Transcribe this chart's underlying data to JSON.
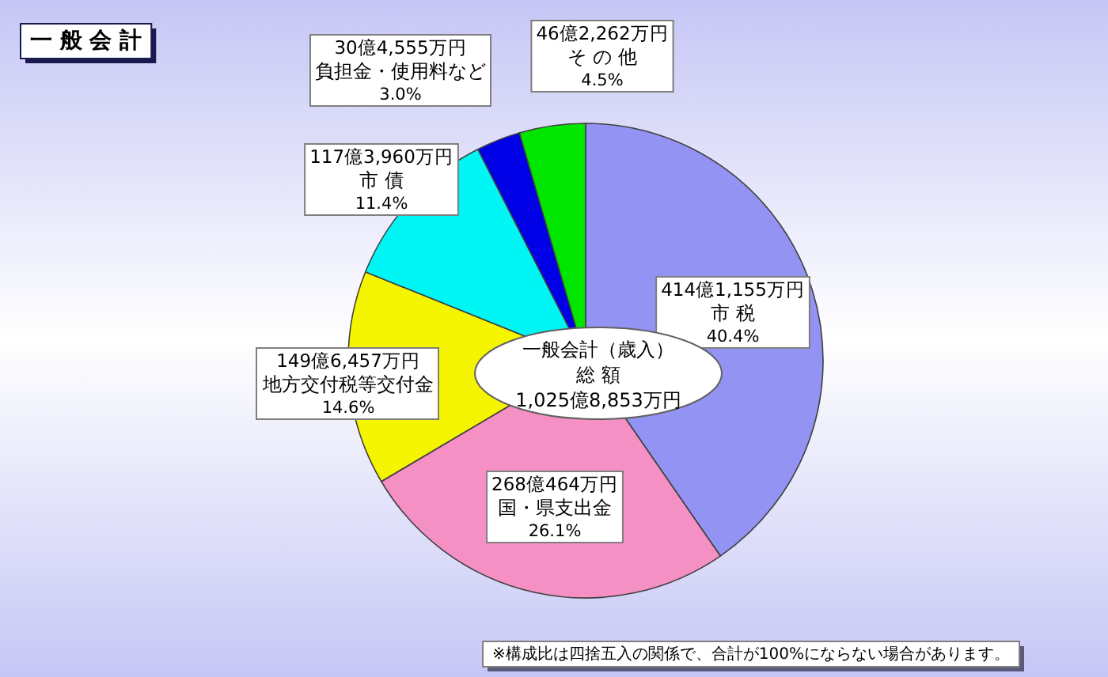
{
  "chart_data": {
    "type": "pie",
    "title": "一 般 会 計",
    "categories": [
      "市 税",
      "国・県支出金",
      "地方交付税等交付金",
      "市 債",
      "負担金・使用料など",
      "そ の 他"
    ],
    "values": [
      40.4,
      26.1,
      14.6,
      11.4,
      3.0,
      4.5
    ],
    "value_labels": [
      "40.4%",
      "26.1%",
      "14.6%",
      "11.4%",
      "3.0%",
      "4.5%"
    ],
    "colors": [
      "#9393f3",
      "#f590c5",
      "#f5f500",
      "#00f5f5",
      "#0000e6",
      "#00e600"
    ],
    "annotations": [
      {
        "text": "414億1,155万円",
        "x": "市 税"
      },
      {
        "text": "268億464万円",
        "x": "国・県支出金"
      },
      {
        "text": "149億6,457万円",
        "x": "地方交付税等交付金"
      },
      {
        "text": "117億3,960万円",
        "x": "市 債"
      },
      {
        "text": "30億4,555万円",
        "x": "負担金・使用料など"
      },
      {
        "text": "46億2,262万円",
        "x": "そ の 他"
      },
      "一般会計（歳入）",
      "総 額",
      "1,025億8,853万円",
      "※構成比は四捨五入の関係で、合計が100%にならない場合があります。"
    ]
  }
}
